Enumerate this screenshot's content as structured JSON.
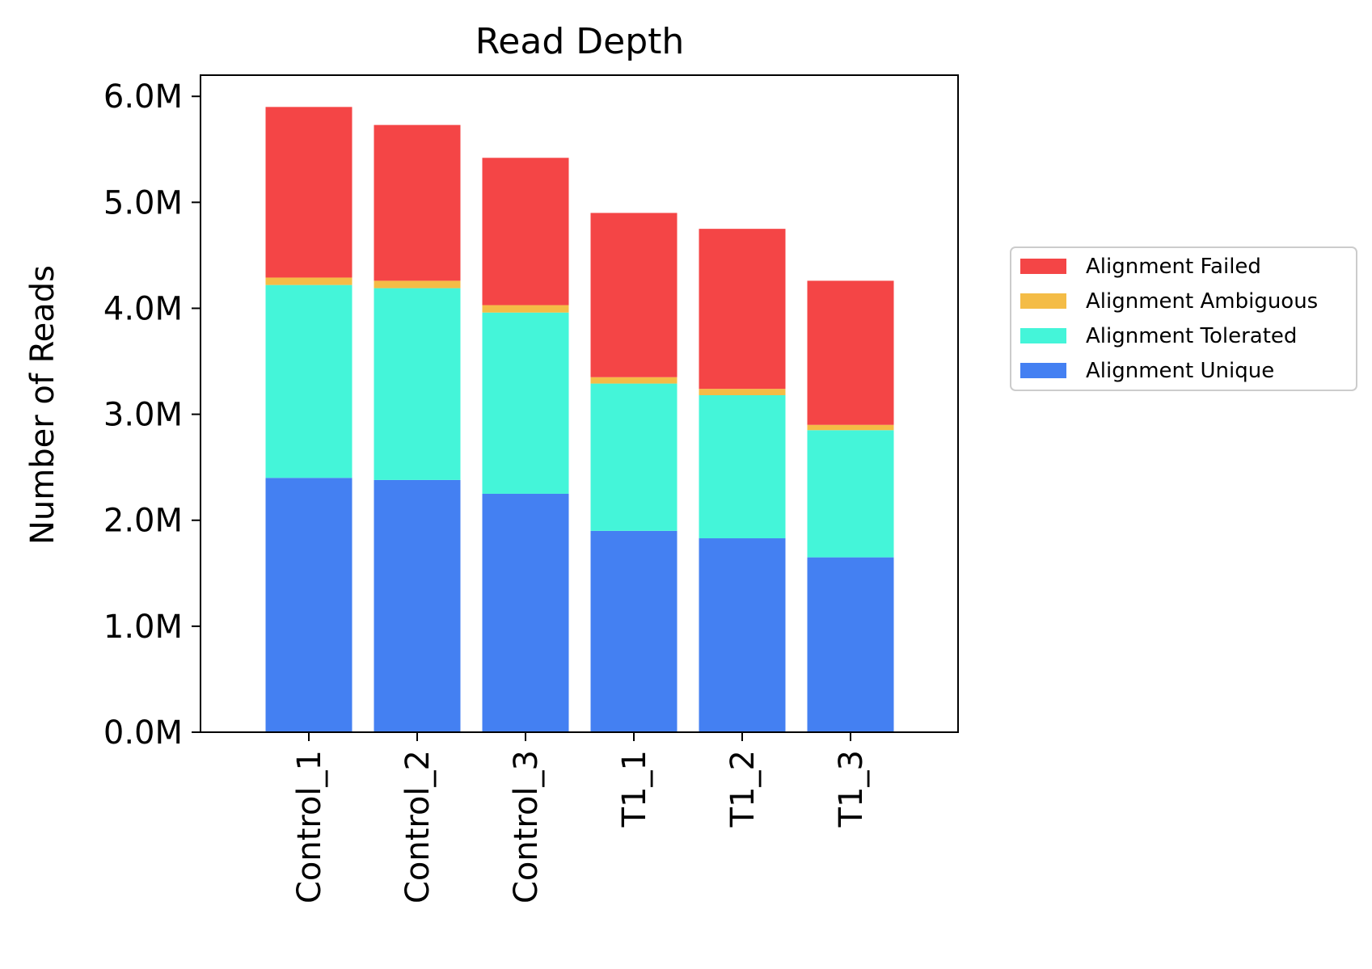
{
  "chart_data": {
    "type": "bar",
    "stacked": true,
    "title": "Read Depth",
    "xlabel": "",
    "ylabel": "Number of Reads",
    "categories": [
      "Control_1",
      "Control_2",
      "Control_3",
      "T1_1",
      "T1_2",
      "T1_3"
    ],
    "ylim": [
      0,
      6200000
    ],
    "yticks": [
      0,
      1000000,
      2000000,
      3000000,
      4000000,
      5000000,
      6000000
    ],
    "ytick_labels": [
      "0.0M",
      "1.0M",
      "2.0M",
      "3.0M",
      "4.0M",
      "5.0M",
      "6.0M"
    ],
    "series": [
      {
        "name": "Alignment Unique",
        "color": "#4480f2",
        "values": [
          2400000,
          2380000,
          2250000,
          1900000,
          1830000,
          1650000
        ]
      },
      {
        "name": "Alignment Tolerated",
        "color": "#44f5d9",
        "values": [
          1820000,
          1810000,
          1710000,
          1390000,
          1350000,
          1200000
        ]
      },
      {
        "name": "Alignment Ambiguous",
        "color": "#f4bc46",
        "values": [
          70000,
          70000,
          70000,
          60000,
          60000,
          50000
        ]
      },
      {
        "name": "Alignment Failed",
        "color": "#f44546",
        "values": [
          1610000,
          1470000,
          1390000,
          1550000,
          1510000,
          1360000
        ]
      }
    ],
    "legend": {
      "position": "right",
      "order": [
        "Alignment Failed",
        "Alignment Ambiguous",
        "Alignment Tolerated",
        "Alignment Unique"
      ]
    },
    "grid": false
  }
}
